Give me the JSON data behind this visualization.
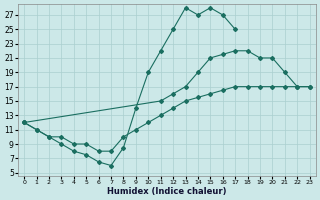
{
  "background_color": "#cce8e8",
  "grid_color": "#aacfcf",
  "line_color": "#1a6e60",
  "xlabel": "Humidex (Indice chaleur)",
  "xlim": [
    -0.5,
    23.5
  ],
  "ylim": [
    4.5,
    28.5
  ],
  "xticks": [
    0,
    1,
    2,
    3,
    4,
    5,
    6,
    7,
    8,
    9,
    10,
    11,
    12,
    13,
    14,
    15,
    16,
    17,
    18,
    19,
    20,
    21,
    22,
    23
  ],
  "yticks": [
    5,
    7,
    9,
    11,
    13,
    15,
    17,
    19,
    21,
    23,
    25,
    27
  ],
  "line1_x": [
    0,
    1,
    2,
    3,
    4,
    5,
    6,
    7,
    8,
    9,
    10,
    11,
    12,
    13,
    14,
    15,
    16,
    17
  ],
  "line1_y": [
    12,
    11,
    10,
    9,
    8,
    7.5,
    6.5,
    6,
    8.5,
    14,
    19,
    22,
    25,
    28,
    27,
    28,
    27,
    25
  ],
  "line2_x": [
    0,
    11,
    12,
    13,
    14,
    15,
    16,
    17,
    18,
    19,
    20,
    21,
    22,
    23
  ],
  "line2_y": [
    12,
    15,
    16,
    17,
    19,
    21,
    21.5,
    22,
    22,
    21,
    21,
    19,
    17,
    17
  ],
  "line3_x": [
    0,
    1,
    2,
    3,
    4,
    5,
    6,
    7,
    8,
    9,
    10,
    11,
    12,
    13,
    14,
    15,
    16,
    17,
    18,
    19,
    20,
    21,
    22,
    23
  ],
  "line3_y": [
    12,
    11,
    10,
    10,
    9,
    9,
    8,
    8,
    10,
    11,
    12,
    13,
    14,
    15,
    15.5,
    16,
    16.5,
    17,
    17,
    17,
    17,
    17,
    17,
    17
  ]
}
